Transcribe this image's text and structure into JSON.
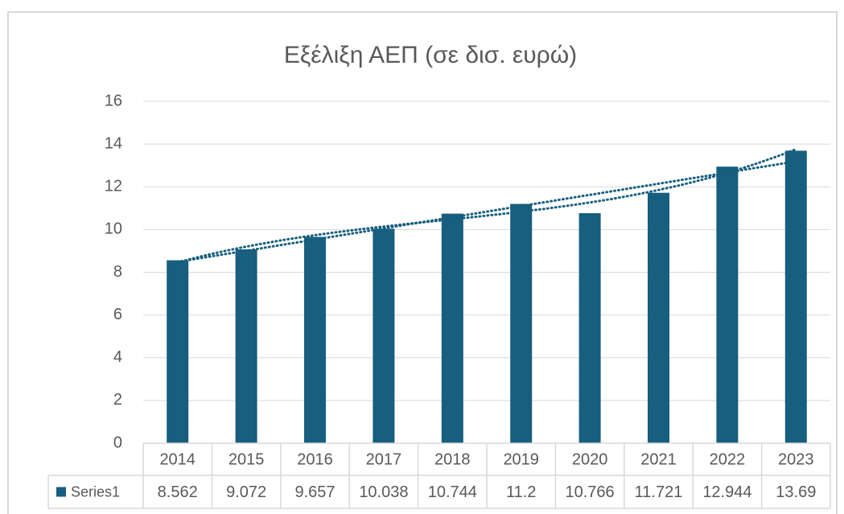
{
  "chart_data": {
    "type": "bar",
    "title": "Εξέλιξη ΑΕΠ (σε δισ. ευρώ)",
    "categories": [
      "2014",
      "2015",
      "2016",
      "2017",
      "2018",
      "2019",
      "2020",
      "2021",
      "2022",
      "2023"
    ],
    "series": [
      {
        "name": "Series1",
        "color": "#175e7f",
        "values": [
          8.562,
          9.072,
          9.657,
          10.038,
          10.744,
          11.2,
          10.766,
          11.721,
          12.944,
          13.69
        ]
      }
    ],
    "ylim": [
      0,
      16
    ],
    "yticks": [
      0,
      2,
      4,
      6,
      8,
      10,
      12,
      14,
      16
    ],
    "grid": true,
    "data_table": true,
    "trendlines": [
      {
        "type": "linear"
      },
      {
        "type": "polynomial",
        "order": 3
      }
    ]
  }
}
